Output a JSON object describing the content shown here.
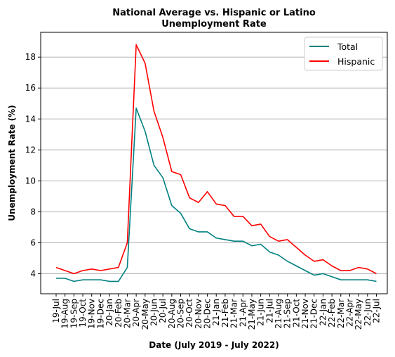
{
  "chart_data": {
    "type": "line",
    "title_lines": [
      "National Average vs. Hispanic or Latino",
      "Unemployment Rate"
    ],
    "xlabel": "Date (July 2019 - July 2022)",
    "ylabel": "Unemployment Rate (%)",
    "ylim": [
      2.7,
      19.6
    ],
    "yticks": [
      4,
      6,
      8,
      10,
      12,
      14,
      16,
      18
    ],
    "grid": "horizontal",
    "legend_position": "top-right",
    "x": [
      "19-Jul",
      "19-Aug",
      "19-Sep",
      "19-Oct",
      "19-Nov",
      "19-Dec",
      "20-Jan",
      "20-Feb",
      "20-Mar",
      "20-Apr",
      "20-May",
      "20-Jun",
      "20-Jul",
      "20-Aug",
      "20-Sep",
      "20-Oct",
      "20-Nov",
      "20-Dec",
      "21-Jan",
      "21-Feb",
      "21-Mar",
      "21-Apr",
      "21-May",
      "21-Jun",
      "21-Jul",
      "21-Aug",
      "21-Sep",
      "21-Oct",
      "21-Nov",
      "21-Dec",
      "22-Jan",
      "22-Feb",
      "22-Mar",
      "22-Apr",
      "22-May",
      "22-Jun",
      "22-Jul"
    ],
    "series": [
      {
        "name": "Total",
        "color": "#008080",
        "values": [
          3.7,
          3.7,
          3.5,
          3.6,
          3.6,
          3.6,
          3.5,
          3.5,
          4.4,
          14.7,
          13.2,
          11.0,
          10.2,
          8.4,
          7.9,
          6.9,
          6.7,
          6.7,
          6.3,
          6.2,
          6.1,
          6.1,
          5.8,
          5.9,
          5.4,
          5.2,
          4.8,
          4.5,
          4.2,
          3.9,
          4.0,
          3.8,
          3.6,
          3.6,
          3.6,
          3.6,
          3.5
        ]
      },
      {
        "name": "Hispanic",
        "color": "#ff0000",
        "values": [
          4.4,
          4.2,
          4.0,
          4.2,
          4.3,
          4.2,
          4.3,
          4.4,
          6.0,
          18.8,
          17.6,
          14.5,
          12.8,
          10.6,
          10.4,
          8.9,
          8.6,
          9.3,
          8.5,
          8.4,
          7.7,
          7.7,
          7.1,
          7.2,
          6.4,
          6.1,
          6.2,
          5.7,
          5.2,
          4.8,
          4.9,
          4.5,
          4.2,
          4.2,
          4.4,
          4.3,
          4.0
        ]
      }
    ]
  }
}
